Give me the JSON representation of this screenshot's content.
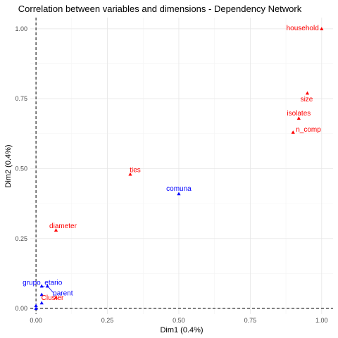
{
  "chart_data": {
    "type": "scatter",
    "title": "Correlation between variables and dimensions - Dependency Network",
    "xlabel": "Dim1 (0.4%)",
    "ylabel": "Dim2 (0.4%)",
    "xlim": [
      -0.02,
      1.04
    ],
    "ylim": [
      -0.02,
      1.04
    ],
    "xticks": [
      0.0,
      0.25,
      0.5,
      0.75,
      1.0
    ],
    "yticks": [
      0.0,
      0.25,
      0.5,
      0.75,
      1.0
    ],
    "xtick_labels": [
      "0.00",
      "0.25",
      "0.50",
      "0.75",
      "1.00"
    ],
    "ytick_labels": [
      "0.00",
      "0.25",
      "0.50",
      "0.75",
      "1.00"
    ],
    "grid": true,
    "reference_lines": {
      "x": 0,
      "y": 0
    },
    "colors": {
      "red": "#ff0000",
      "blue": "#0000ff"
    },
    "points": [
      {
        "label": "household",
        "x": 1.0,
        "y": 1.0,
        "color": "red"
      },
      {
        "label": "size",
        "x": 0.95,
        "y": 0.77,
        "color": "red"
      },
      {
        "label": "isolates",
        "x": 0.92,
        "y": 0.68,
        "color": "red"
      },
      {
        "label": "n_comp",
        "x": 0.9,
        "y": 0.63,
        "color": "red"
      },
      {
        "label": "ties",
        "x": 0.33,
        "y": 0.48,
        "color": "red"
      },
      {
        "label": "comuna",
        "x": 0.5,
        "y": 0.41,
        "color": "blue"
      },
      {
        "label": "diameter",
        "x": 0.07,
        "y": 0.28,
        "color": "red"
      },
      {
        "label": "grupo_etario",
        "x": 0.02,
        "y": 0.08,
        "color": "blue"
      },
      {
        "label": "parent",
        "x": 0.04,
        "y": 0.08,
        "color": "blue"
      },
      {
        "label": "Cluster",
        "x": 0.07,
        "y": 0.04,
        "color": "red"
      },
      {
        "label": "",
        "x": 0.02,
        "y": 0.05,
        "color": "blue"
      },
      {
        "label": "",
        "x": 0.02,
        "y": 0.02,
        "color": "blue"
      },
      {
        "label": "",
        "x": 0.0,
        "y": 0.01,
        "color": "blue"
      },
      {
        "label": "",
        "x": 0.0,
        "y": 0.0,
        "color": "blue"
      }
    ]
  }
}
